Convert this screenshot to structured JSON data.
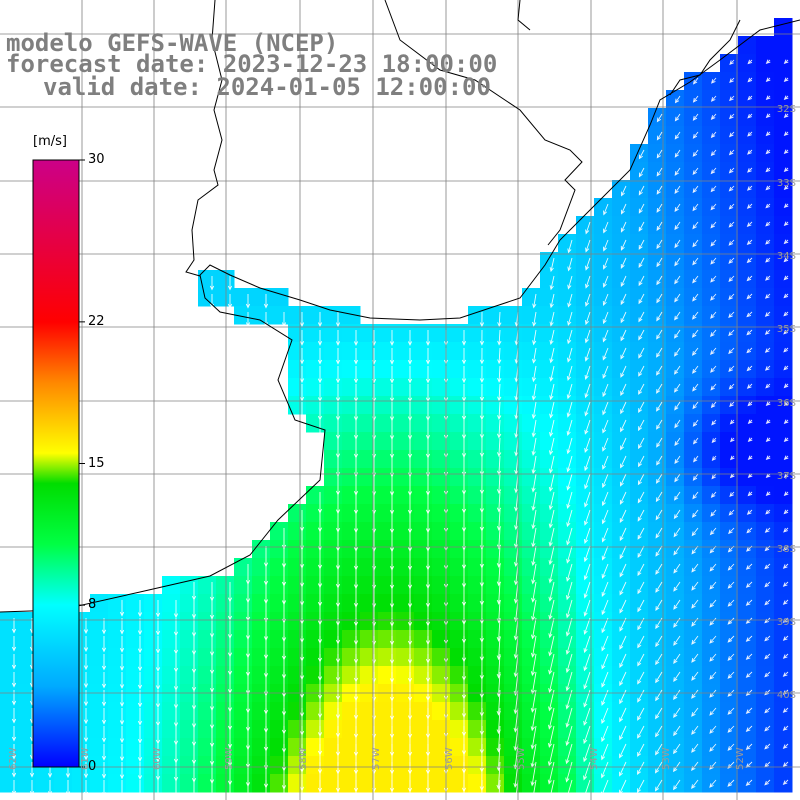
{
  "title": {
    "line1": "modelo GEFS-WAVE (NCEP)",
    "line2": "forecast date: 2023-12-23 18:00:00",
    "line3": "valid date: 2024-01-05 12:00:00"
  },
  "colorbar": {
    "unit": "[m/s]",
    "min": 0,
    "max": 30,
    "ticks": [
      {
        "value": 30,
        "label": "30"
      },
      {
        "value": 22,
        "label": "22"
      },
      {
        "value": 15,
        "label": "15"
      },
      {
        "value": 8,
        "label": "8"
      },
      {
        "value": 0,
        "label": "0"
      }
    ],
    "colors": [
      "#0000ff",
      "#00aaff",
      "#00ffff",
      "#00ff44",
      "#00dd00",
      "#ffff00",
      "#ff8800",
      "#ff0000",
      "#cc0088"
    ]
  },
  "lat_labels": [
    "32S",
    "33S",
    "34S",
    "35S",
    "36S",
    "37S",
    "38S",
    "39S",
    "40S"
  ],
  "lon_labels": [
    "62W",
    "61W",
    "60W",
    "59W",
    "58W",
    "57W",
    "56W",
    "55W",
    "54W",
    "53W",
    "52W"
  ],
  "colors": {
    "land": "#ffffff",
    "grid": "#808080",
    "coast": "#000000",
    "arrow": "#ffffff",
    "text": "#7f7f7f"
  }
}
